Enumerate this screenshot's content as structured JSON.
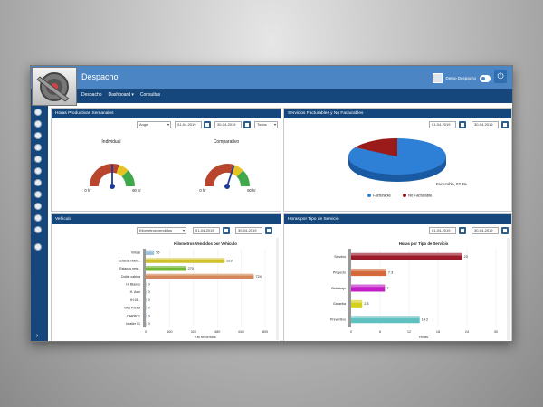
{
  "header": {
    "title": "Despacho",
    "user": "Demo Despacho"
  },
  "nav": [
    "Despacho",
    "Dashboard ▾",
    "Consultas"
  ],
  "panels": {
    "horas_productivas": {
      "title": "Horas Productivas Semanales",
      "filter1": "Angel",
      "date_from": "01-04-2019",
      "date_to": "30-04-2019",
      "filter2": "Todos",
      "gauges": [
        {
          "label": "Individual",
          "min": "0 hr",
          "max": "60 hr",
          "value": 30
        },
        {
          "label": "Comparativo",
          "min": "0 hr",
          "max": "60 hr",
          "value": 36
        }
      ]
    },
    "servicios": {
      "title": "Servicios Facturables y No Facturables",
      "date_from": "01-04-2019",
      "date_to": "30-04-2019",
      "annotation": "Facturable, 83.3%",
      "legend": [
        "Facturable",
        "No Facturable"
      ],
      "colors": [
        "#2e7fd6",
        "#9b1b1b"
      ]
    },
    "vehiculo": {
      "title": "Vehiculo",
      "select": "Kilometros vendidos",
      "date_from": "01-04-2019",
      "date_to": "30-04-2019"
    },
    "tipo_servicio": {
      "title": "Horas por Tipo de Servicio",
      "date_from": "01-04-2019",
      "date_to": "30-04-2019"
    }
  },
  "chart_data": [
    {
      "type": "pie",
      "categories": [
        "Facturable",
        "No Facturable"
      ],
      "values": [
        83.3,
        16.7
      ]
    },
    {
      "type": "bar",
      "title": "Kilometros Vendidos por Vehiculo",
      "xlabel": "KM recorridos",
      "categories": [
        "Virtual",
        "Estacas blanc..",
        "Estacas negr..",
        "Doble cabina",
        "H. Blanco",
        "H. Azul",
        "IH-01 -",
        "VAN ROJO",
        "CARRO1",
        "Imaller 01"
      ],
      "values": [
        56,
        529,
        270,
        724,
        0,
        0,
        0,
        0,
        0,
        0
      ],
      "labels": [
        "56",
        "529",
        "270",
        "724",
        "0",
        "0",
        "0",
        "0",
        "0",
        "0"
      ],
      "colors": [
        "#9ec2db",
        "#cfc12a",
        "#6fb837",
        "#d48759",
        "#9ec2db",
        "#9ec2db",
        "#9ec2db",
        "#9ec2db",
        "#9ec2db",
        "#9ec2db"
      ],
      "xticks": [
        "0",
        "160",
        "320",
        "480",
        "640",
        "800"
      ],
      "xlim": [
        0,
        800
      ]
    },
    {
      "type": "bar",
      "title": "Horas por Tipo de Servicio",
      "xlabel": "Horas",
      "categories": [
        "Servicio",
        "Proyecto",
        "Retrabajo",
        "Garantía",
        "Preventivo"
      ],
      "values": [
        23,
        7.3,
        7,
        2.3,
        14.2
      ],
      "labels": [
        "23",
        "7.3",
        "7",
        "2.3",
        "14.2"
      ],
      "colors": [
        "#9c1b2b",
        "#d46a3c",
        "#c21fc6",
        "#d4d11b",
        "#5fc0c0"
      ],
      "xticks": [
        "0",
        "6",
        "12",
        "18",
        "24",
        "30"
      ],
      "xlim": [
        0,
        30
      ]
    }
  ]
}
